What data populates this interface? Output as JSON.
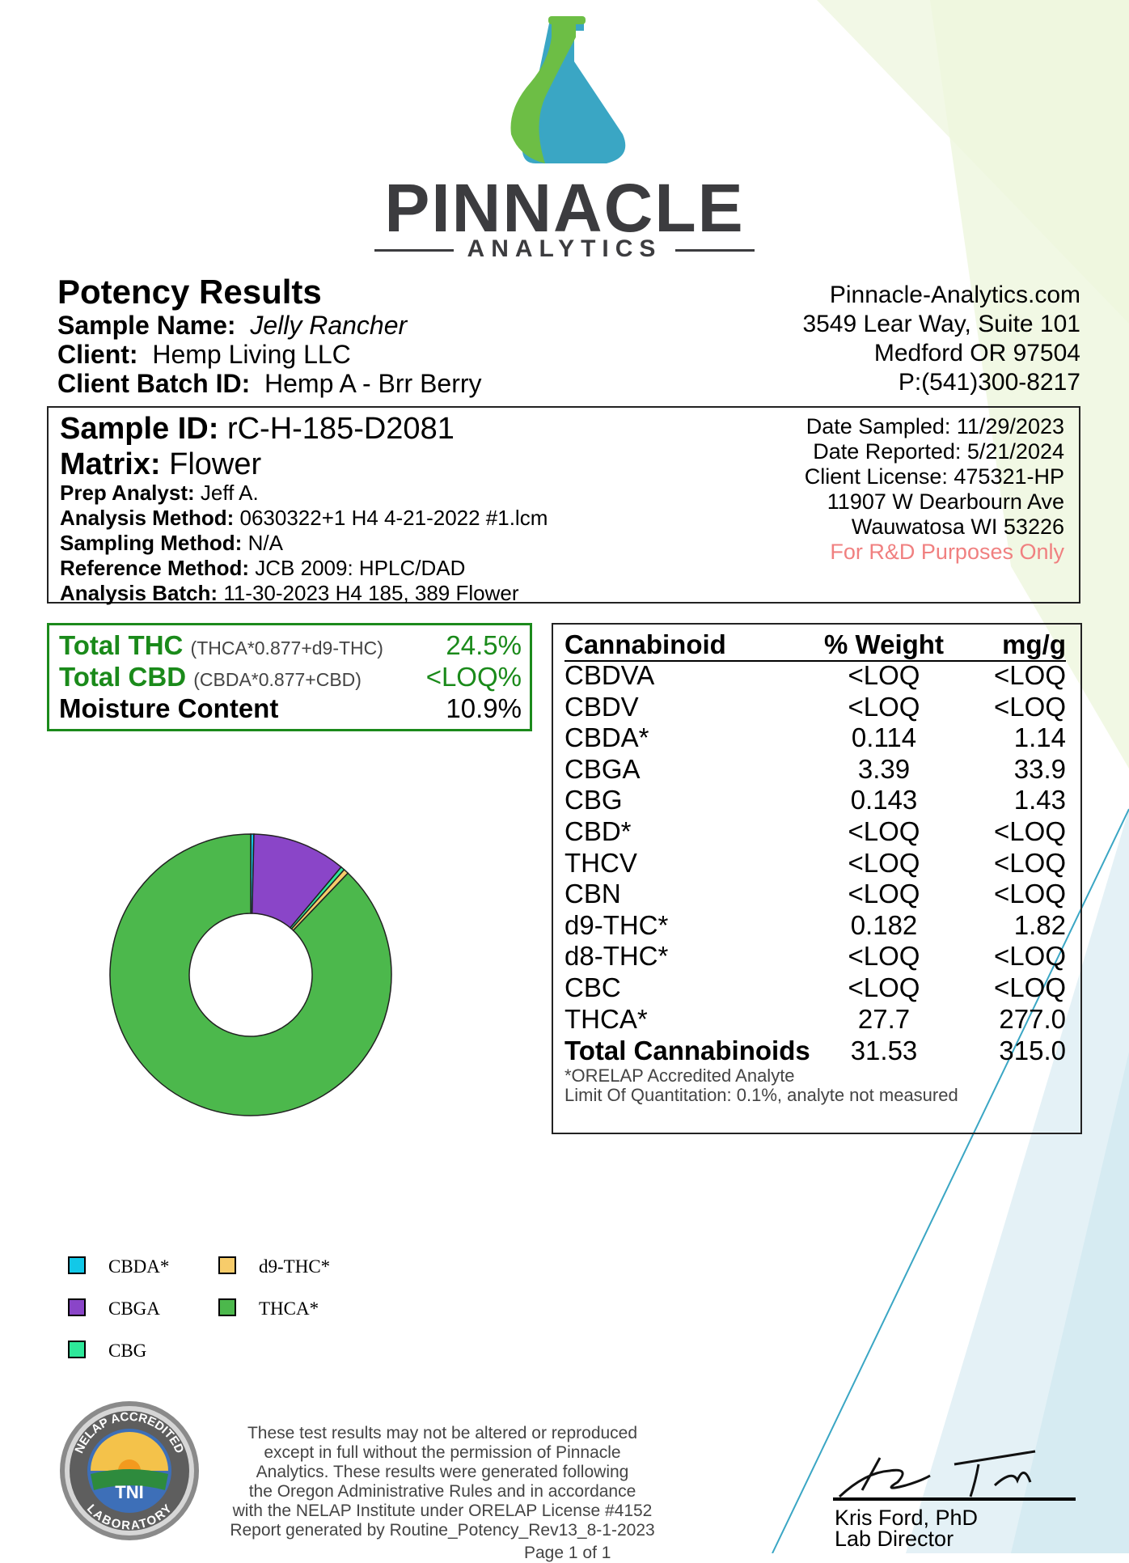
{
  "colors": {
    "brand_green": "#6dbe45",
    "brand_teal": "#3aa6c4",
    "logo_text": "#3c3c3f",
    "totals_green": "#1a8a1a",
    "notice_red": "#f08080",
    "thca": "#4cb84c",
    "cbga": "#8a45c8",
    "cbda": "#12c8e8",
    "cbg": "#2ee89a",
    "d9_thc": "#f7cc6a"
  },
  "logo": {
    "name": "PINNACLE",
    "subtitle": "ANALYTICS"
  },
  "header": {
    "title": "Potency Results",
    "sample_name_label": "Sample Name:",
    "sample_name": "Jelly Rancher",
    "client_label": "Client:",
    "client": "Hemp Living LLC",
    "batch_label": "Client Batch ID:",
    "batch_id": "Hemp A - Brr Berry"
  },
  "lab_contact": {
    "website": "Pinnacle-Analytics.com",
    "address1": "3549 Lear Way, Suite 101",
    "address2": "Medford OR 97504",
    "phone": "P:(541)300-8217"
  },
  "sample": {
    "id_label": "Sample ID:",
    "id": "rC-H-185-D2081",
    "matrix_label": "Matrix:",
    "matrix": "Flower",
    "prep_analyst_label": "Prep Analyst:",
    "prep_analyst": "Jeff A.",
    "analysis_method_label": "Analysis Method:",
    "analysis_method": "0630322+1 H4 4-21-2022 #1.lcm",
    "sampling_method_label": "Sampling Method:",
    "sampling_method": "N/A",
    "reference_method_label": "Reference Method:",
    "reference_method": "JCB 2009: HPLC/DAD",
    "analysis_batch_label": "Analysis Batch:",
    "analysis_batch": "11-30-2023 H4 185, 389 Flower",
    "date_sampled": "Date Sampled:  11/29/2023",
    "date_reported": "Date Reported: 5/21/2024",
    "client_license": "Client License: 475321-HP",
    "client_address1": "11907 W Dearbourn Ave",
    "client_address2": "Wauwatosa WI 53226",
    "notice": "For R&D Purposes Only"
  },
  "totals": {
    "thc_label": "Total THC",
    "thc_formula": "(THCA*0.877+d9-THC)",
    "thc_value": "24.5%",
    "cbd_label": "Total CBD",
    "cbd_formula": "(CBDA*0.877+CBD)",
    "cbd_value": "<LOQ%",
    "moisture_label": "Moisture Content",
    "moisture_value": "10.9%"
  },
  "cannabinoids": {
    "headers": [
      "Cannabinoid",
      "% Weight",
      "mg/g"
    ],
    "rows": [
      [
        "CBDVA",
        "<LOQ",
        "<LOQ"
      ],
      [
        "CBDV",
        "<LOQ",
        "<LOQ"
      ],
      [
        "CBDA*",
        "0.114",
        "1.14"
      ],
      [
        "CBGA",
        "3.39",
        "33.9"
      ],
      [
        "CBG",
        "0.143",
        "1.43"
      ],
      [
        "CBD*",
        "<LOQ",
        "<LOQ"
      ],
      [
        "THCV",
        "<LOQ",
        "<LOQ"
      ],
      [
        "CBN",
        "<LOQ",
        "<LOQ"
      ],
      [
        "d9-THC*",
        "0.182",
        "1.82"
      ],
      [
        "d8-THC*",
        "<LOQ",
        "<LOQ"
      ],
      [
        "CBC",
        "<LOQ",
        "<LOQ"
      ],
      [
        "THCA*",
        "27.7",
        "277.0"
      ]
    ],
    "total": [
      "Total Cannabinoids",
      "31.53",
      "315.0"
    ],
    "footnote1": "*ORELAP Accredited Analyte",
    "footnote2": "Limit Of Quantitation: 0.1%, analyte not measured"
  },
  "chart_data": {
    "type": "pie",
    "variant": "donut",
    "title": "",
    "categories": [
      "CBDA*",
      "CBGA",
      "CBG",
      "d9-THC*",
      "THCA*"
    ],
    "values": [
      0.114,
      3.39,
      0.143,
      0.182,
      27.7
    ],
    "colors": [
      "#12c8e8",
      "#8a45c8",
      "#2ee89a",
      "#f7cc6a",
      "#4cb84c"
    ],
    "start_angle_deg": 0,
    "direction": "clockwise",
    "legend_position": "bottom-left"
  },
  "legend": [
    {
      "label": "CBDA*",
      "color": "#12c8e8"
    },
    {
      "label": "d9-THC*",
      "color": "#f7cc6a"
    },
    {
      "label": "CBGA",
      "color": "#8a45c8"
    },
    {
      "label": "THCA*",
      "color": "#4cb84c"
    },
    {
      "label": "CBG",
      "color": "#2ee89a"
    }
  ],
  "footer": {
    "seal_top": "NELAP ACCREDITED",
    "seal_center": "TNI",
    "seal_bottom": "LABORATORY",
    "disclaimer_lines": [
      "These test results may not be altered or reproduced",
      "except in full without the permission of Pinnacle",
      "Analytics. These results were generated following",
      "the Oregon Administrative Rules and in accordance",
      "with the NELAP Institute under ORELAP License #4152",
      "Report generated by Routine_Potency_Rev13_8-1-2023"
    ],
    "page_number": "Page 1 of 1",
    "signer_name": "Kris Ford, PhD",
    "signer_title": "Lab Director"
  }
}
